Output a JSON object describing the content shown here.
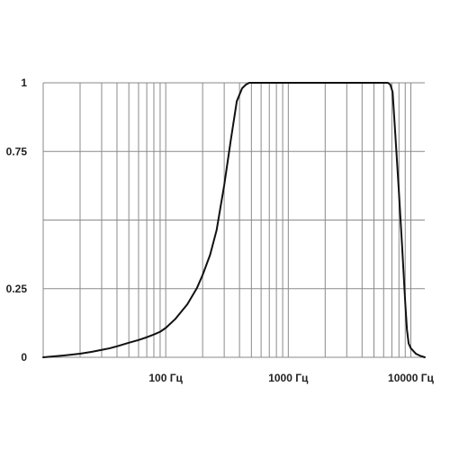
{
  "chart_data": {
    "type": "line",
    "title": "",
    "xlabel": "",
    "ylabel": "",
    "x_scale": "log",
    "xlim": [
      10,
      13000
    ],
    "ylim": [
      0,
      1
    ],
    "grid": true,
    "x_tick_labels": [
      {
        "value": 100,
        "label": "100 Гц"
      },
      {
        "value": 1000,
        "label": "1000 Гц"
      },
      {
        "value": 10000,
        "label": "10000 Гц"
      }
    ],
    "y_tick_labels": [
      {
        "value": 0,
        "label": "0"
      },
      {
        "value": 0.25,
        "label": "0.25"
      },
      {
        "value": 0.75,
        "label": "0.75"
      },
      {
        "value": 1,
        "label": "1"
      }
    ],
    "y_gridlines": [
      0,
      0.25,
      0.5,
      0.75,
      1
    ],
    "series": [
      {
        "color": "#111111",
        "x": [
          10,
          15,
          20,
          25,
          30,
          35,
          40,
          50,
          60,
          70,
          80,
          90,
          100,
          120,
          150,
          180,
          200,
          230,
          260,
          300,
          340,
          380,
          420,
          450,
          480,
          500,
          550,
          600,
          800,
          1000,
          2000,
          4000,
          6000,
          6500,
          6800,
          7100,
          7500,
          8000,
          8500,
          9000,
          9300,
          9600,
          10000,
          11000,
          12000,
          13000
        ],
        "y": [
          0,
          0.007,
          0.013,
          0.02,
          0.027,
          0.033,
          0.04,
          0.053,
          0.063,
          0.073,
          0.083,
          0.093,
          0.107,
          0.14,
          0.193,
          0.253,
          0.3,
          0.373,
          0.463,
          0.627,
          0.793,
          0.933,
          0.98,
          0.993,
          1,
          1,
          1,
          1,
          1,
          1,
          1,
          1,
          1,
          1,
          0.993,
          0.967,
          0.8,
          0.6,
          0.4,
          0.2,
          0.1,
          0.05,
          0.033,
          0.013,
          0.005,
          0
        ]
      }
    ]
  }
}
